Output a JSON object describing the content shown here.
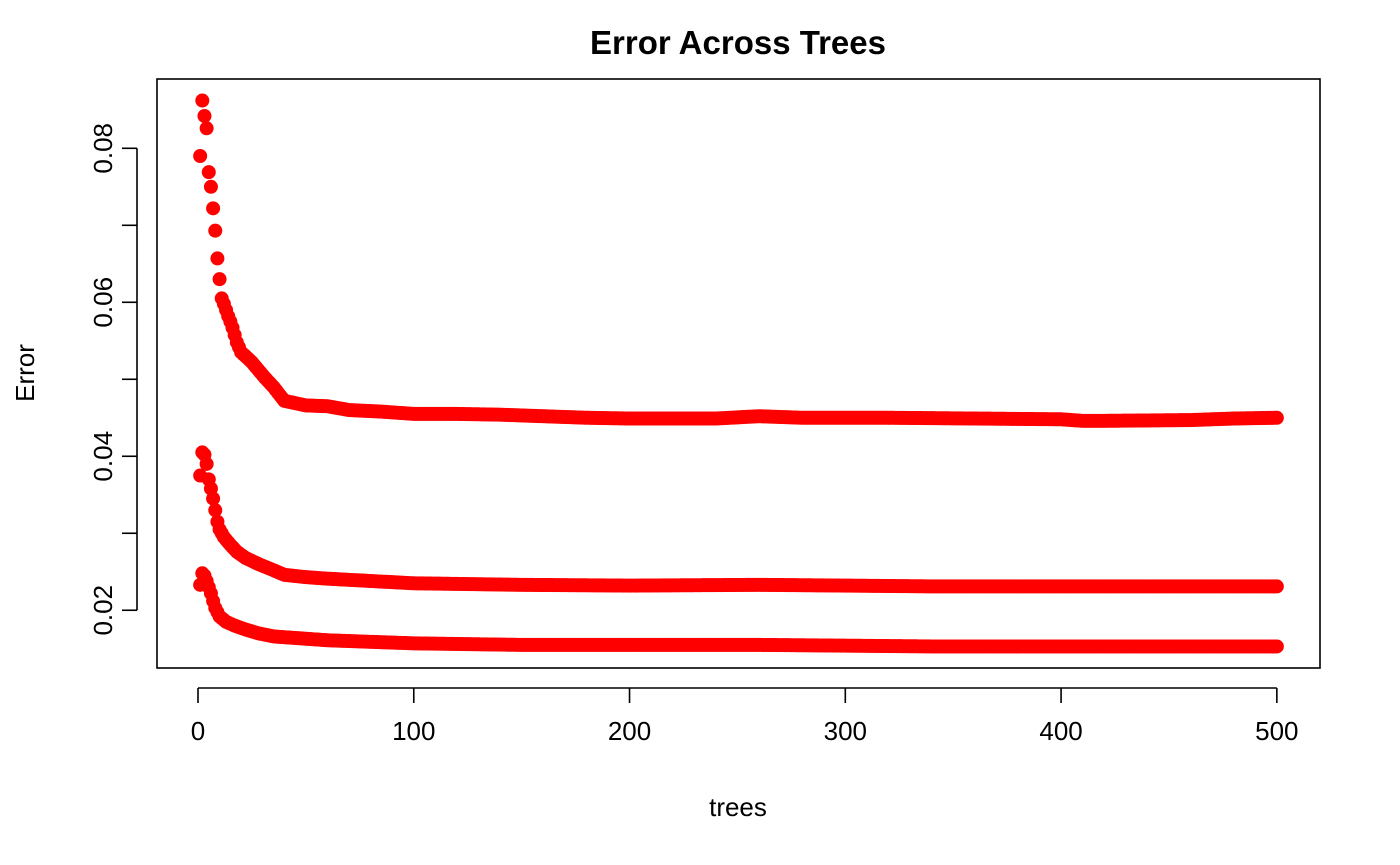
{
  "chart_data": {
    "type": "scatter",
    "title": "Error Across Trees",
    "xlabel": "trees",
    "ylabel": "Error",
    "xlim": [
      -19,
      520
    ],
    "ylim": [
      0.0125,
      0.089
    ],
    "x_ticks": [
      0,
      100,
      200,
      300,
      400,
      500
    ],
    "x_tick_labels": [
      "0",
      "100",
      "200",
      "300",
      "400",
      "500"
    ],
    "y_ticks": [
      0.02,
      0.03,
      0.04,
      0.05,
      0.06,
      0.07,
      0.08
    ],
    "y_tick_labels": [
      "0.02",
      "",
      "0.04",
      "",
      "0.06",
      "",
      "0.08"
    ],
    "grid": false,
    "legend": "none",
    "point_color": "#ff0000",
    "frame": "box",
    "x_range": [
      1,
      500
    ],
    "series": [
      {
        "anchors": [
          [
            1,
            0.079
          ],
          [
            2,
            0.0862
          ],
          [
            3,
            0.0842
          ],
          [
            4,
            0.0826
          ],
          [
            5,
            0.0769
          ],
          [
            6,
            0.075
          ],
          [
            7,
            0.0722
          ],
          [
            8,
            0.0693
          ],
          [
            9,
            0.0657
          ],
          [
            10,
            0.063
          ],
          [
            11,
            0.0605
          ],
          [
            12,
            0.0598
          ],
          [
            14,
            0.0582
          ],
          [
            15,
            0.0575
          ],
          [
            16,
            0.0567
          ],
          [
            18,
            0.0548
          ],
          [
            20,
            0.0535
          ],
          [
            22,
            0.053
          ],
          [
            25,
            0.0522
          ],
          [
            28,
            0.0512
          ],
          [
            31,
            0.0502
          ],
          [
            35,
            0.049
          ],
          [
            40,
            0.0472
          ],
          [
            50,
            0.0466
          ],
          [
            60,
            0.0465
          ],
          [
            70,
            0.046
          ],
          [
            85,
            0.0458
          ],
          [
            100,
            0.0455
          ],
          [
            120,
            0.0455
          ],
          [
            140,
            0.0454
          ],
          [
            160,
            0.0452
          ],
          [
            180,
            0.045
          ],
          [
            200,
            0.0449
          ],
          [
            240,
            0.0449
          ],
          [
            260,
            0.0452
          ],
          [
            280,
            0.045
          ],
          [
            320,
            0.045
          ],
          [
            360,
            0.0449
          ],
          [
            400,
            0.0448
          ],
          [
            410,
            0.0446
          ],
          [
            420,
            0.0446
          ],
          [
            460,
            0.0447
          ],
          [
            480,
            0.0449
          ],
          [
            500,
            0.045
          ]
        ]
      },
      {
        "anchors": [
          [
            1,
            0.0375
          ],
          [
            2,
            0.0405
          ],
          [
            3,
            0.0402
          ],
          [
            4,
            0.039
          ],
          [
            5,
            0.037
          ],
          [
            6,
            0.0358
          ],
          [
            7,
            0.0345
          ],
          [
            8,
            0.033
          ],
          [
            9,
            0.0315
          ],
          [
            10,
            0.0305
          ],
          [
            12,
            0.0295
          ],
          [
            15,
            0.0285
          ],
          [
            18,
            0.0276
          ],
          [
            22,
            0.0268
          ],
          [
            28,
            0.026
          ],
          [
            35,
            0.0252
          ],
          [
            40,
            0.0246
          ],
          [
            50,
            0.0243
          ],
          [
            60,
            0.0241
          ],
          [
            80,
            0.0238
          ],
          [
            100,
            0.0235
          ],
          [
            150,
            0.0233
          ],
          [
            200,
            0.0232
          ],
          [
            260,
            0.0233
          ],
          [
            300,
            0.0232
          ],
          [
            340,
            0.0231
          ],
          [
            400,
            0.0231
          ],
          [
            450,
            0.0231
          ],
          [
            500,
            0.0231
          ]
        ]
      },
      {
        "anchors": [
          [
            1,
            0.0233
          ],
          [
            2,
            0.0248
          ],
          [
            3,
            0.0245
          ],
          [
            4,
            0.0238
          ],
          [
            5,
            0.023
          ],
          [
            6,
            0.0222
          ],
          [
            7,
            0.0212
          ],
          [
            8,
            0.0203
          ],
          [
            10,
            0.0192
          ],
          [
            13,
            0.0185
          ],
          [
            17,
            0.018
          ],
          [
            22,
            0.0175
          ],
          [
            28,
            0.017
          ],
          [
            35,
            0.0166
          ],
          [
            45,
            0.0164
          ],
          [
            60,
            0.0161
          ],
          [
            80,
            0.0159
          ],
          [
            100,
            0.0157
          ],
          [
            150,
            0.0155
          ],
          [
            200,
            0.0155
          ],
          [
            260,
            0.0155
          ],
          [
            300,
            0.0154
          ],
          [
            340,
            0.0153
          ],
          [
            400,
            0.0153
          ],
          [
            450,
            0.0153
          ],
          [
            500,
            0.0153
          ]
        ]
      }
    ]
  }
}
